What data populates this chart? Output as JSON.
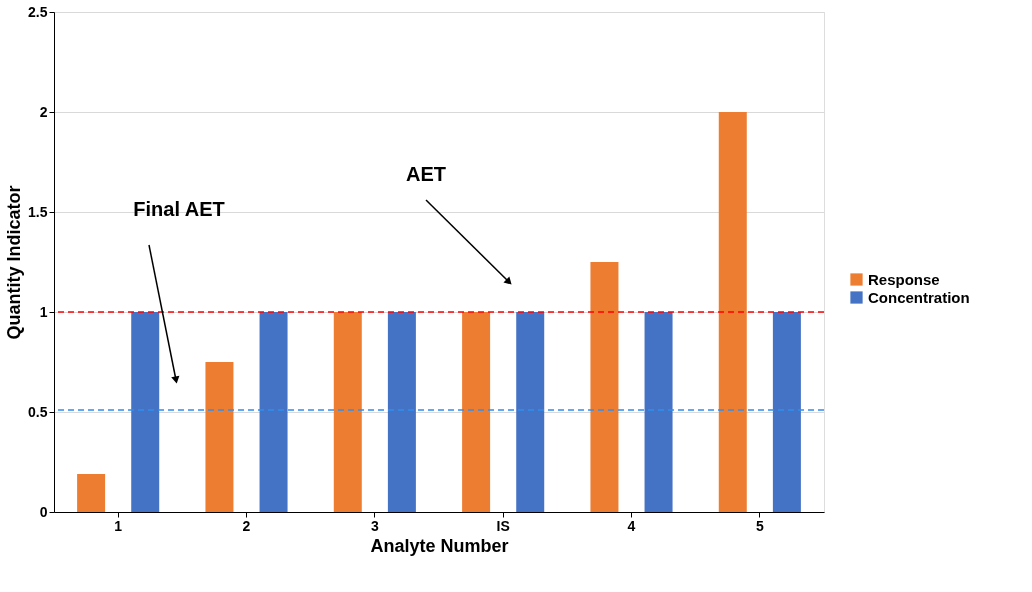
{
  "chart_data": {
    "type": "bar",
    "xlabel": "Analyte Number",
    "ylabel": "Quantity Indicator",
    "categories": [
      "1",
      "2",
      "3",
      "IS",
      "4",
      "5"
    ],
    "series": [
      {
        "name": "Response",
        "color": "#ed7d31",
        "values": [
          0.19,
          0.75,
          1,
          1,
          1.25,
          2
        ]
      },
      {
        "name": "Concentration",
        "color": "#4472c4",
        "values": [
          1,
          1,
          1,
          1,
          1,
          1
        ]
      }
    ],
    "ylim": [
      0,
      2.5
    ],
    "yticks": [
      0,
      0.5,
      1,
      1.5,
      2,
      2.5
    ],
    "grid": "y",
    "legend": "right",
    "ref_lines": [
      {
        "axis": "y",
        "value": 1,
        "color": "#ff0000",
        "line_style": "dashed"
      },
      {
        "axis": "y",
        "value": 0.51,
        "color": "#2e8ff0",
        "line_style": "dashed"
      }
    ],
    "annotations": [
      "Final AET",
      "AET"
    ]
  }
}
